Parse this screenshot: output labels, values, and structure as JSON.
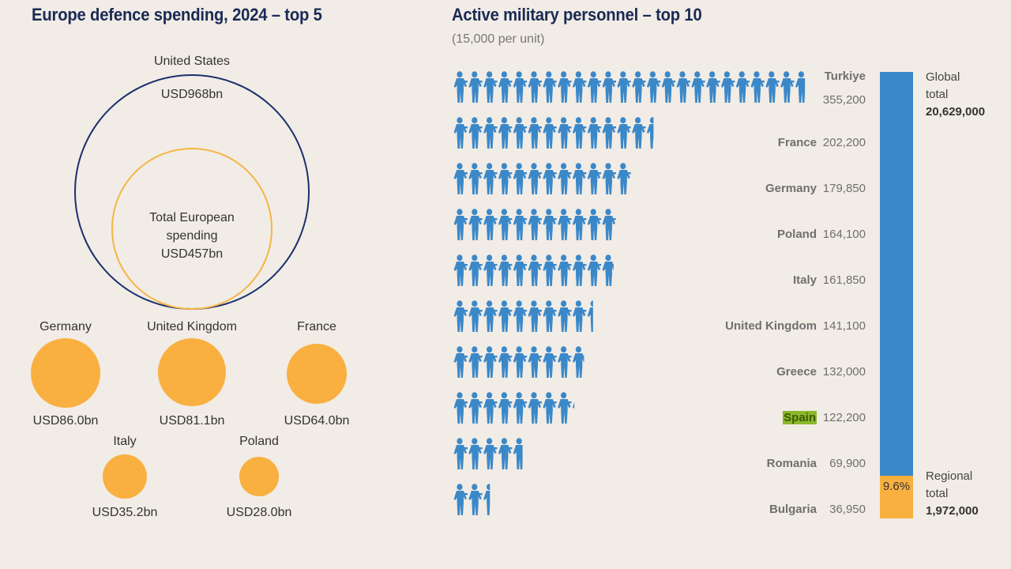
{
  "left": {
    "title": "Europe defence spending, 2024 – top 5",
    "us": {
      "name": "United States",
      "value": "USD968bn",
      "amount_bn": 968
    },
    "europe": {
      "line1": "Total European",
      "line2": "spending",
      "value": "USD457bn",
      "amount_bn": 457
    },
    "countries": [
      {
        "name": "Germany",
        "value": "USD86.0bn",
        "amount_bn": 86.0
      },
      {
        "name": "United Kingdom",
        "value": "USD81.1bn",
        "amount_bn": 81.1
      },
      {
        "name": "France",
        "value": "USD64.0bn",
        "amount_bn": 64.0
      },
      {
        "name": "Italy",
        "value": "USD35.2bn",
        "amount_bn": 35.2
      },
      {
        "name": "Poland",
        "value": "USD28.0bn",
        "amount_bn": 28.0
      }
    ],
    "colors": {
      "us": "#1a2f6e",
      "europe": "#f5b545",
      "country": "#f9b040"
    }
  },
  "right": {
    "title": "Active military personnel – top 10",
    "subtitle": "(15,000 per unit)",
    "unit_size": 15000,
    "color_icon": "#3b88c9",
    "rows": [
      {
        "name": "Turkiye",
        "value": "355,200",
        "personnel": 355200
      },
      {
        "name": "France",
        "value": "202,200",
        "personnel": 202200
      },
      {
        "name": "Germany",
        "value": "179,850",
        "personnel": 179850
      },
      {
        "name": "Poland",
        "value": "164,100",
        "personnel": 164100
      },
      {
        "name": "Italy",
        "value": "161,850",
        "personnel": 161850
      },
      {
        "name": "United Kingdom",
        "value": "141,100",
        "personnel": 141100
      },
      {
        "name": "Greece",
        "value": "132,000",
        "personnel": 132000
      },
      {
        "name": "Spain",
        "value": "122,200",
        "personnel": 122200,
        "highlight": true
      },
      {
        "name": "Romania",
        "value": "69,900",
        "personnel": 69900
      },
      {
        "name": "Bulgaria",
        "value": "36,950",
        "personnel": 36950
      }
    ],
    "stack": {
      "global_l1": "Global",
      "global_l2": "total",
      "global_value": "20,629,000",
      "regional_l1": "Regional",
      "regional_l2": "total",
      "regional_value": "1,972,000",
      "share_label": "9.6%",
      "share_pct": 9.6,
      "color_global": "#3b88c9",
      "color_regional": "#f9b040"
    }
  },
  "chart_data": [
    {
      "type": "bubble",
      "title": "Europe defence spending, 2024 – top 5",
      "unit": "USD bn",
      "categories": [
        "United States",
        "Total European spending",
        "Germany",
        "United Kingdom",
        "France",
        "Italy",
        "Poland"
      ],
      "values": [
        968,
        457,
        86.0,
        81.1,
        64.0,
        35.2,
        28.0
      ]
    },
    {
      "type": "bar",
      "title": "Active military personnel – top 10",
      "subtitle": "(15,000 per unit)",
      "categories": [
        "Turkiye",
        "France",
        "Germany",
        "Poland",
        "Italy",
        "United Kingdom",
        "Greece",
        "Spain",
        "Romania",
        "Bulgaria"
      ],
      "values": [
        355200,
        202200,
        179850,
        164100,
        161850,
        141100,
        132000,
        122200,
        69900,
        36950
      ]
    },
    {
      "type": "bar",
      "stacked": true,
      "series": [
        {
          "name": "Regional total",
          "values": [
            1972000
          ]
        },
        {
          "name": "Global total",
          "values": [
            20629000
          ]
        }
      ],
      "annotation": "9.6%"
    }
  ]
}
